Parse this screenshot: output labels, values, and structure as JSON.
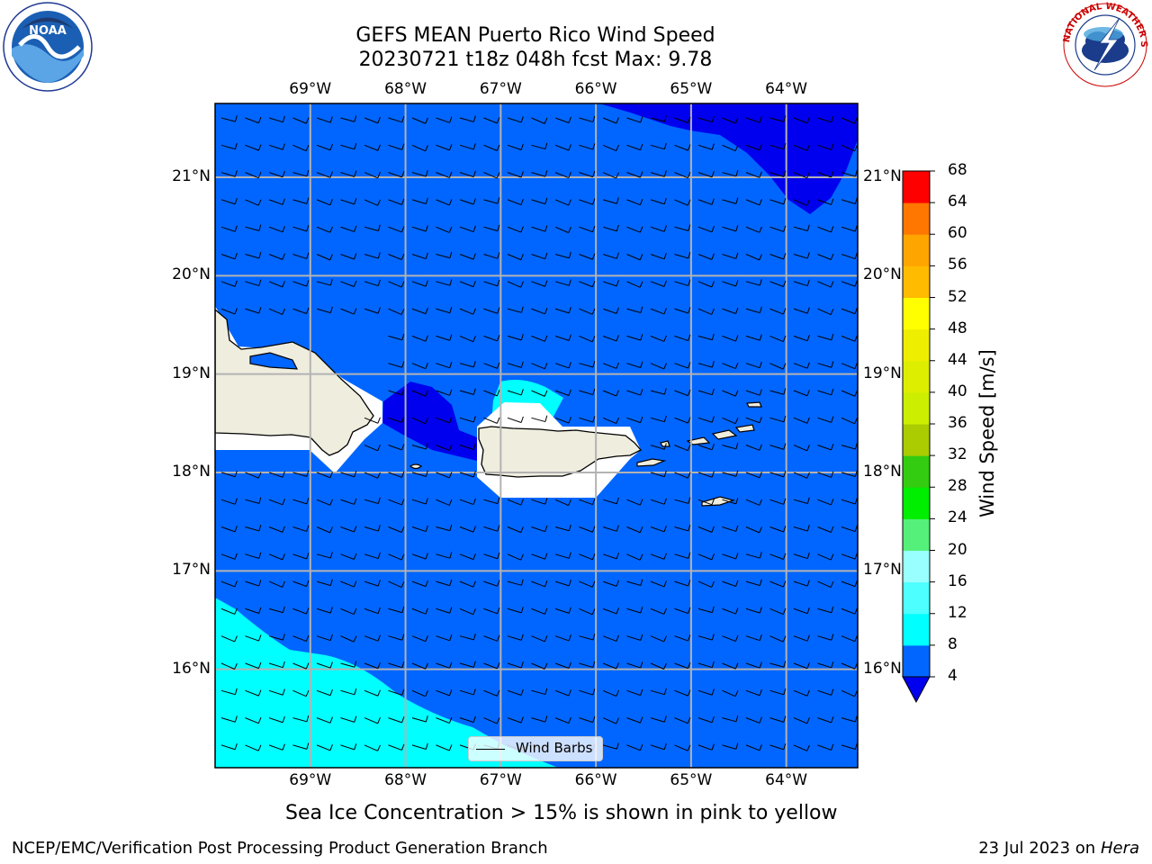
{
  "title": {
    "line1": "GEFS MEAN Puerto Rico Wind Speed",
    "line2": "20230721 t18z 048h fcst   Max: 9.78"
  },
  "map": {
    "lon_labels": [
      "69°W",
      "68°W",
      "67°W",
      "66°W",
      "65°W",
      "64°W"
    ],
    "lat_labels": [
      "21°N",
      "20°N",
      "19°N",
      "18°N",
      "17°N",
      "16°N"
    ],
    "lon_values": [
      -69,
      -68,
      -67,
      -66,
      -65,
      -64
    ],
    "lat_values": [
      21,
      20,
      19,
      18,
      17,
      16
    ],
    "lon_range": [
      -70.0,
      -63.25
    ],
    "lat_range": [
      15.0,
      21.75
    ],
    "wind_field": "wind barbs across the domain, mostly 5-10 m/s from the east-southeast",
    "shading": [
      {
        "range": "4-8 m/s",
        "color": "#0066ff"
      },
      {
        "range": "< 4 m/s",
        "color": "#0000ee"
      },
      {
        "range": "8-12 m/s",
        "color": "#00ffff"
      }
    ],
    "land_color": "#efedde"
  },
  "legend": {
    "label": "Wind Barbs"
  },
  "colorbar": {
    "label": "Wind Speed [m/s]",
    "ticks": [
      "4",
      "8",
      "12",
      "16",
      "20",
      "24",
      "28",
      "32",
      "36",
      "40",
      "44",
      "48",
      "52",
      "56",
      "60",
      "64",
      "68"
    ],
    "extend_color": "#0000ee",
    "colors": [
      "#0066ff",
      "#00ffff",
      "#4dffff",
      "#99ffff",
      "#55f07a",
      "#00ee00",
      "#33cc11",
      "#aacc00",
      "#ccee00",
      "#ddee00",
      "#eeee00",
      "#ffff00",
      "#ffbb00",
      "#ffa500",
      "#ff7700",
      "#ff4400",
      "#ff0000"
    ]
  },
  "caption": "Sea Ice Concentration > 15% is shown in pink to yellow",
  "footer": {
    "left": "NCEP/EMC/Verification Post Processing Product Generation Branch",
    "date": "23 Jul 2023 on ",
    "machine": "Hera"
  },
  "logos": {
    "left": "NOAA",
    "right": "NATIONAL WEATHER SERVICE"
  }
}
